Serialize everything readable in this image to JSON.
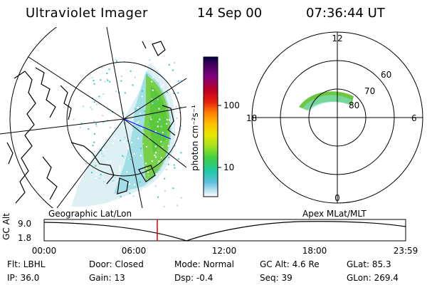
{
  "header": {
    "title": "Ultraviolet Imager",
    "date": "14 Sep 00",
    "time": "07:36:44 UT"
  },
  "colorbar": {
    "unit_label": "photon cm⁻²s⁻¹",
    "ticks": [
      "100",
      "10"
    ],
    "colors": [
      "#000040",
      "#4a0060",
      "#7a0080",
      "#b00030",
      "#e01010",
      "#ff6000",
      "#ffb000",
      "#e8e000",
      "#a0e020",
      "#40d040",
      "#20c0a0",
      "#40b0e0",
      "#c0e8f0",
      "#ffffff"
    ]
  },
  "polar_plot": {
    "mlt_labels": [
      "12",
      "18",
      "6",
      "0"
    ],
    "mlat_labels": [
      "60",
      "70",
      "80"
    ]
  },
  "timeline": {
    "left_caption": "Geographic Lat/Lon",
    "right_caption": "Apex  MLat/MLT",
    "axis_label": "GC Alt",
    "y_ticks": [
      "9.0",
      "1.8"
    ],
    "x_ticks": [
      "00:00",
      "06:00",
      "12:00",
      "18:00",
      "23:59"
    ],
    "current_marker_color": "#e00000"
  },
  "info": {
    "flt": "Flt: LBHL",
    "ip": "IP: 36.0",
    "door": "Door: Closed",
    "gain": "Gain: 13",
    "mode": "Mode: Normal",
    "dsp": "Dsp:    -0.4",
    "gc_alt": "GC Alt: 4.6 Re",
    "seq": "Seq: 39",
    "glat": "GLat:    85.3",
    "glon": "GLon:  269.4"
  }
}
